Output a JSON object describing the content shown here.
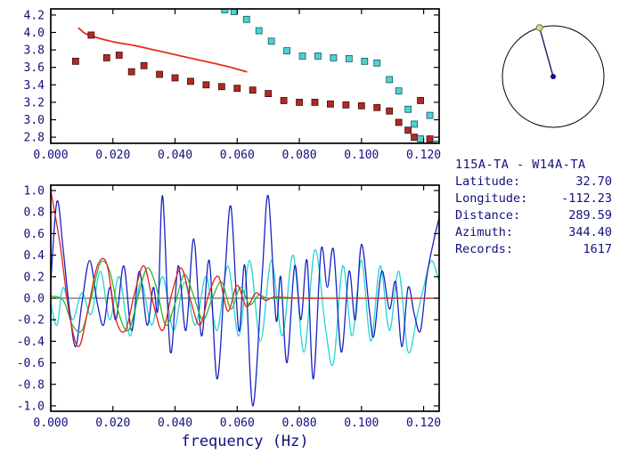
{
  "window": {
    "background": "#ffffff"
  },
  "colors": {
    "text": "#10107e",
    "axis": "#000000"
  },
  "station_info": {
    "title": "115A-TA - W14A-TA",
    "rows": [
      {
        "label": "Latitude:",
        "value": "32.70"
      },
      {
        "label": "Longitude:",
        "value": "-112.23"
      },
      {
        "label": "Distance:",
        "value": "289.59"
      },
      {
        "label": "Azimuth:",
        "value": "344.40"
      },
      {
        "label": "Records:",
        "value": "1617"
      }
    ]
  },
  "azimuth_dial": {
    "azimuth_deg": 344.4,
    "circle_color": "#000000",
    "line_color": "#1c1c60",
    "center_dot_color": "#10107e",
    "marker_color": "#d8d887",
    "marker_edge_color": "#77772f"
  },
  "chart_data": [
    {
      "name": "dispersion",
      "type": "scatter",
      "title": "",
      "xlabel": "",
      "ylabel": "",
      "xlim": [
        0,
        0.125
      ],
      "ylim": [
        2.73,
        4.27
      ],
      "grid": false,
      "legend": "none",
      "xtick_vals": [
        0,
        0.02,
        0.04,
        0.06,
        0.08,
        0.1,
        0.12
      ],
      "xtick_labels": [
        "0.000",
        "0.020",
        "0.040",
        "0.060",
        "0.080",
        "0.100",
        "0.120"
      ],
      "ytick_vals": [
        2.8,
        3.0,
        3.2,
        3.4,
        3.6,
        3.8,
        4.0,
        4.2
      ],
      "ytick_labels": [
        "2.8",
        "3.0",
        "3.2",
        "3.4",
        "3.6",
        "3.8",
        "4.0",
        "4.2"
      ],
      "series": [
        {
          "name": "phase-velocity-curve",
          "type": "line",
          "smooth": true,
          "color": "#e03020",
          "width": 1.8,
          "points": [
            [
              0.009,
              4.05
            ],
            [
              0.011,
              3.99
            ],
            [
              0.014,
              3.95
            ],
            [
              0.018,
              3.91
            ],
            [
              0.022,
              3.88
            ],
            [
              0.027,
              3.85
            ],
            [
              0.032,
              3.81
            ],
            [
              0.037,
              3.77
            ],
            [
              0.042,
              3.73
            ],
            [
              0.047,
              3.69
            ],
            [
              0.052,
              3.65
            ],
            [
              0.057,
              3.61
            ],
            [
              0.061,
              3.57
            ],
            [
              0.063,
              3.55
            ]
          ]
        },
        {
          "name": "dispersion-picks-red",
          "type": "scatter",
          "marker": "square",
          "color": "#b22a22",
          "edge": "#3a0d0d",
          "size": 7,
          "points": [
            [
              0.008,
              3.67
            ],
            [
              0.013,
              3.97
            ],
            [
              0.018,
              3.71
            ],
            [
              0.022,
              3.74
            ],
            [
              0.026,
              3.55
            ],
            [
              0.03,
              3.62
            ],
            [
              0.035,
              3.52
            ],
            [
              0.04,
              3.48
            ],
            [
              0.045,
              3.44
            ],
            [
              0.05,
              3.4
            ],
            [
              0.055,
              3.38
            ],
            [
              0.06,
              3.36
            ],
            [
              0.065,
              3.34
            ],
            [
              0.07,
              3.3
            ],
            [
              0.075,
              3.22
            ],
            [
              0.08,
              3.2
            ],
            [
              0.085,
              3.2
            ],
            [
              0.09,
              3.18
            ],
            [
              0.095,
              3.17
            ],
            [
              0.1,
              3.16
            ],
            [
              0.105,
              3.14
            ],
            [
              0.109,
              3.1
            ],
            [
              0.112,
              2.97
            ],
            [
              0.115,
              2.88
            ],
            [
              0.117,
              2.8
            ],
            [
              0.119,
              3.22
            ],
            [
              0.122,
              2.78
            ]
          ]
        },
        {
          "name": "dispersion-picks-cyan",
          "type": "scatter",
          "marker": "square",
          "color": "#4fd2d2",
          "edge": "#14545e",
          "size": 7,
          "points": [
            [
              0.056,
              4.26
            ],
            [
              0.059,
              4.24
            ],
            [
              0.063,
              4.15
            ],
            [
              0.067,
              4.02
            ],
            [
              0.071,
              3.9
            ],
            [
              0.076,
              3.79
            ],
            [
              0.081,
              3.73
            ],
            [
              0.086,
              3.73
            ],
            [
              0.091,
              3.71
            ],
            [
              0.096,
              3.7
            ],
            [
              0.101,
              3.67
            ],
            [
              0.105,
              3.65
            ],
            [
              0.109,
              3.46
            ],
            [
              0.112,
              3.33
            ],
            [
              0.115,
              3.12
            ],
            [
              0.117,
              2.95
            ],
            [
              0.119,
              2.78
            ],
            [
              0.122,
              3.05
            ],
            [
              0.124,
              2.72
            ]
          ]
        }
      ]
    },
    {
      "name": "waveform",
      "type": "line",
      "title": "",
      "xlabel": "frequency (Hz)",
      "ylabel": "",
      "xlim": [
        0,
        0.125
      ],
      "ylim": [
        -1.05,
        1.05
      ],
      "grid": false,
      "legend": "none",
      "zero_line": true,
      "xtick_vals": [
        0,
        0.02,
        0.04,
        0.06,
        0.08,
        0.1,
        0.12
      ],
      "xtick_labels": [
        "0.000",
        "0.020",
        "0.040",
        "0.060",
        "0.080",
        "0.100",
        "0.120"
      ],
      "ytick_vals": [
        -1.0,
        -0.8,
        -0.6,
        -0.4,
        -0.2,
        0.0,
        0.2,
        0.4,
        0.6,
        0.8,
        1.0
      ],
      "ytick_labels": [
        "-1.0",
        "-0.8",
        "-0.6",
        "-0.4",
        "-0.2",
        "0.0",
        "0.2",
        "0.4",
        "0.6",
        "0.8",
        "1.0"
      ],
      "series": [
        {
          "name": "waveform-cyan",
          "type": "line",
          "smooth": true,
          "color": "#25d5d5",
          "width": 1.3,
          "points": [
            [
              0.0,
              -0.05
            ],
            [
              0.002,
              -0.25
            ],
            [
              0.004,
              0.1
            ],
            [
              0.007,
              -0.2
            ],
            [
              0.01,
              0.05
            ],
            [
              0.013,
              -0.15
            ],
            [
              0.016,
              0.25
            ],
            [
              0.019,
              -0.2
            ],
            [
              0.022,
              0.2
            ],
            [
              0.0255,
              -0.35
            ],
            [
              0.029,
              0.15
            ],
            [
              0.0325,
              -0.25
            ],
            [
              0.036,
              0.2
            ],
            [
              0.0395,
              -0.3
            ],
            [
              0.043,
              0.15
            ],
            [
              0.0465,
              -0.25
            ],
            [
              0.05,
              0.2
            ],
            [
              0.0535,
              -0.3
            ],
            [
              0.057,
              0.3
            ],
            [
              0.0605,
              -0.35
            ],
            [
              0.064,
              0.35
            ],
            [
              0.0675,
              -0.4
            ],
            [
              0.071,
              0.35
            ],
            [
              0.0745,
              -0.35
            ],
            [
              0.078,
              0.4
            ],
            [
              0.0815,
              -0.5
            ],
            [
              0.085,
              0.45
            ],
            [
              0.0885,
              -0.3
            ],
            [
              0.091,
              -0.6
            ],
            [
              0.094,
              0.3
            ],
            [
              0.097,
              -0.35
            ],
            [
              0.1,
              0.35
            ],
            [
              0.103,
              -0.4
            ],
            [
              0.106,
              0.3
            ],
            [
              0.109,
              -0.3
            ],
            [
              0.112,
              0.25
            ],
            [
              0.115,
              -0.5
            ],
            [
              0.118,
              -0.15
            ],
            [
              0.12,
              0.1
            ],
            [
              0.1225,
              0.35
            ],
            [
              0.125,
              0.15
            ]
          ]
        },
        {
          "name": "waveform-blue",
          "type": "line",
          "smooth": true,
          "color": "#1822c2",
          "width": 1.3,
          "points": [
            [
              0.0,
              0.15
            ],
            [
              0.002,
              0.9
            ],
            [
              0.004,
              0.45
            ],
            [
              0.006,
              -0.1
            ],
            [
              0.008,
              -0.45
            ],
            [
              0.01,
              -0.05
            ],
            [
              0.0125,
              0.35
            ],
            [
              0.015,
              -0.05
            ],
            [
              0.017,
              -0.25
            ],
            [
              0.019,
              0.1
            ],
            [
              0.021,
              -0.2
            ],
            [
              0.0235,
              0.3
            ],
            [
              0.026,
              -0.3
            ],
            [
              0.0285,
              0.25
            ],
            [
              0.031,
              -0.25
            ],
            [
              0.033,
              0.1
            ],
            [
              0.0345,
              -0.1
            ],
            [
              0.036,
              0.95
            ],
            [
              0.0385,
              -0.5
            ],
            [
              0.041,
              0.3
            ],
            [
              0.0435,
              -0.3
            ],
            [
              0.046,
              0.55
            ],
            [
              0.0485,
              -0.35
            ],
            [
              0.051,
              0.35
            ],
            [
              0.0535,
              -0.75
            ],
            [
              0.056,
              0.2
            ],
            [
              0.058,
              0.85
            ],
            [
              0.0605,
              -0.3
            ],
            [
              0.0625,
              0.3
            ],
            [
              0.065,
              -1.0
            ],
            [
              0.068,
              0.2
            ],
            [
              0.07,
              0.95
            ],
            [
              0.0725,
              -0.2
            ],
            [
              0.074,
              0.2
            ],
            [
              0.076,
              -0.6
            ],
            [
              0.0785,
              0.3
            ],
            [
              0.0805,
              -0.2
            ],
            [
              0.0825,
              0.35
            ],
            [
              0.0845,
              -0.75
            ],
            [
              0.087,
              0.45
            ],
            [
              0.089,
              0.1
            ],
            [
              0.091,
              0.45
            ],
            [
              0.0935,
              -0.5
            ],
            [
              0.096,
              0.25
            ],
            [
              0.098,
              -0.2
            ],
            [
              0.1,
              0.5
            ],
            [
              0.1025,
              -0.1
            ],
            [
              0.104,
              -0.35
            ],
            [
              0.1065,
              0.25
            ],
            [
              0.109,
              -0.1
            ],
            [
              0.111,
              0.15
            ],
            [
              0.113,
              -0.45
            ],
            [
              0.115,
              0.1
            ],
            [
              0.117,
              -0.15
            ],
            [
              0.119,
              -0.3
            ],
            [
              0.121,
              0.2
            ],
            [
              0.123,
              0.5
            ],
            [
              0.125,
              0.75
            ]
          ]
        },
        {
          "name": "waveform-green",
          "type": "line",
          "smooth": true,
          "color": "#2eb82e",
          "width": 1.3,
          "points": [
            [
              0.0,
              0.02
            ],
            [
              0.004,
              -0.02
            ],
            [
              0.007,
              -0.25
            ],
            [
              0.01,
              -0.3
            ],
            [
              0.013,
              0.0
            ],
            [
              0.016,
              0.33
            ],
            [
              0.019,
              0.25
            ],
            [
              0.022,
              -0.15
            ],
            [
              0.025,
              -0.3
            ],
            [
              0.028,
              0.0
            ],
            [
              0.031,
              0.28
            ],
            [
              0.034,
              0.1
            ],
            [
              0.037,
              -0.25
            ],
            [
              0.04,
              -0.05
            ],
            [
              0.043,
              0.22
            ],
            [
              0.046,
              0.02
            ],
            [
              0.049,
              -0.2
            ],
            [
              0.052,
              0.0
            ],
            [
              0.055,
              0.15
            ],
            [
              0.058,
              -0.1
            ],
            [
              0.061,
              0.1
            ],
            [
              0.064,
              -0.06
            ],
            [
              0.067,
              0.03
            ],
            [
              0.07,
              0.0
            ],
            [
              0.08,
              0.0
            ],
            [
              0.09,
              0.0
            ],
            [
              0.1,
              0.0
            ],
            [
              0.125,
              0.0
            ]
          ]
        },
        {
          "name": "waveform-red",
          "type": "line",
          "smooth": true,
          "color": "#e02020",
          "width": 1.3,
          "points": [
            [
              0.0,
              1.0
            ],
            [
              0.003,
              0.5
            ],
            [
              0.006,
              -0.15
            ],
            [
              0.009,
              -0.45
            ],
            [
              0.012,
              -0.1
            ],
            [
              0.015,
              0.3
            ],
            [
              0.018,
              0.32
            ],
            [
              0.021,
              -0.2
            ],
            [
              0.024,
              -0.3
            ],
            [
              0.027,
              0.05
            ],
            [
              0.03,
              0.3
            ],
            [
              0.033,
              -0.05
            ],
            [
              0.036,
              -0.3
            ],
            [
              0.039,
              0.05
            ],
            [
              0.042,
              0.28
            ],
            [
              0.045,
              -0.02
            ],
            [
              0.048,
              -0.25
            ],
            [
              0.051,
              0.05
            ],
            [
              0.054,
              0.2
            ],
            [
              0.057,
              -0.12
            ],
            [
              0.06,
              0.12
            ],
            [
              0.063,
              -0.08
            ],
            [
              0.066,
              0.05
            ],
            [
              0.069,
              -0.02
            ],
            [
              0.072,
              0.01
            ],
            [
              0.08,
              0.0
            ],
            [
              0.09,
              0.0
            ],
            [
              0.1,
              0.0
            ],
            [
              0.11,
              0.0
            ],
            [
              0.125,
              0.0
            ]
          ]
        }
      ]
    }
  ]
}
